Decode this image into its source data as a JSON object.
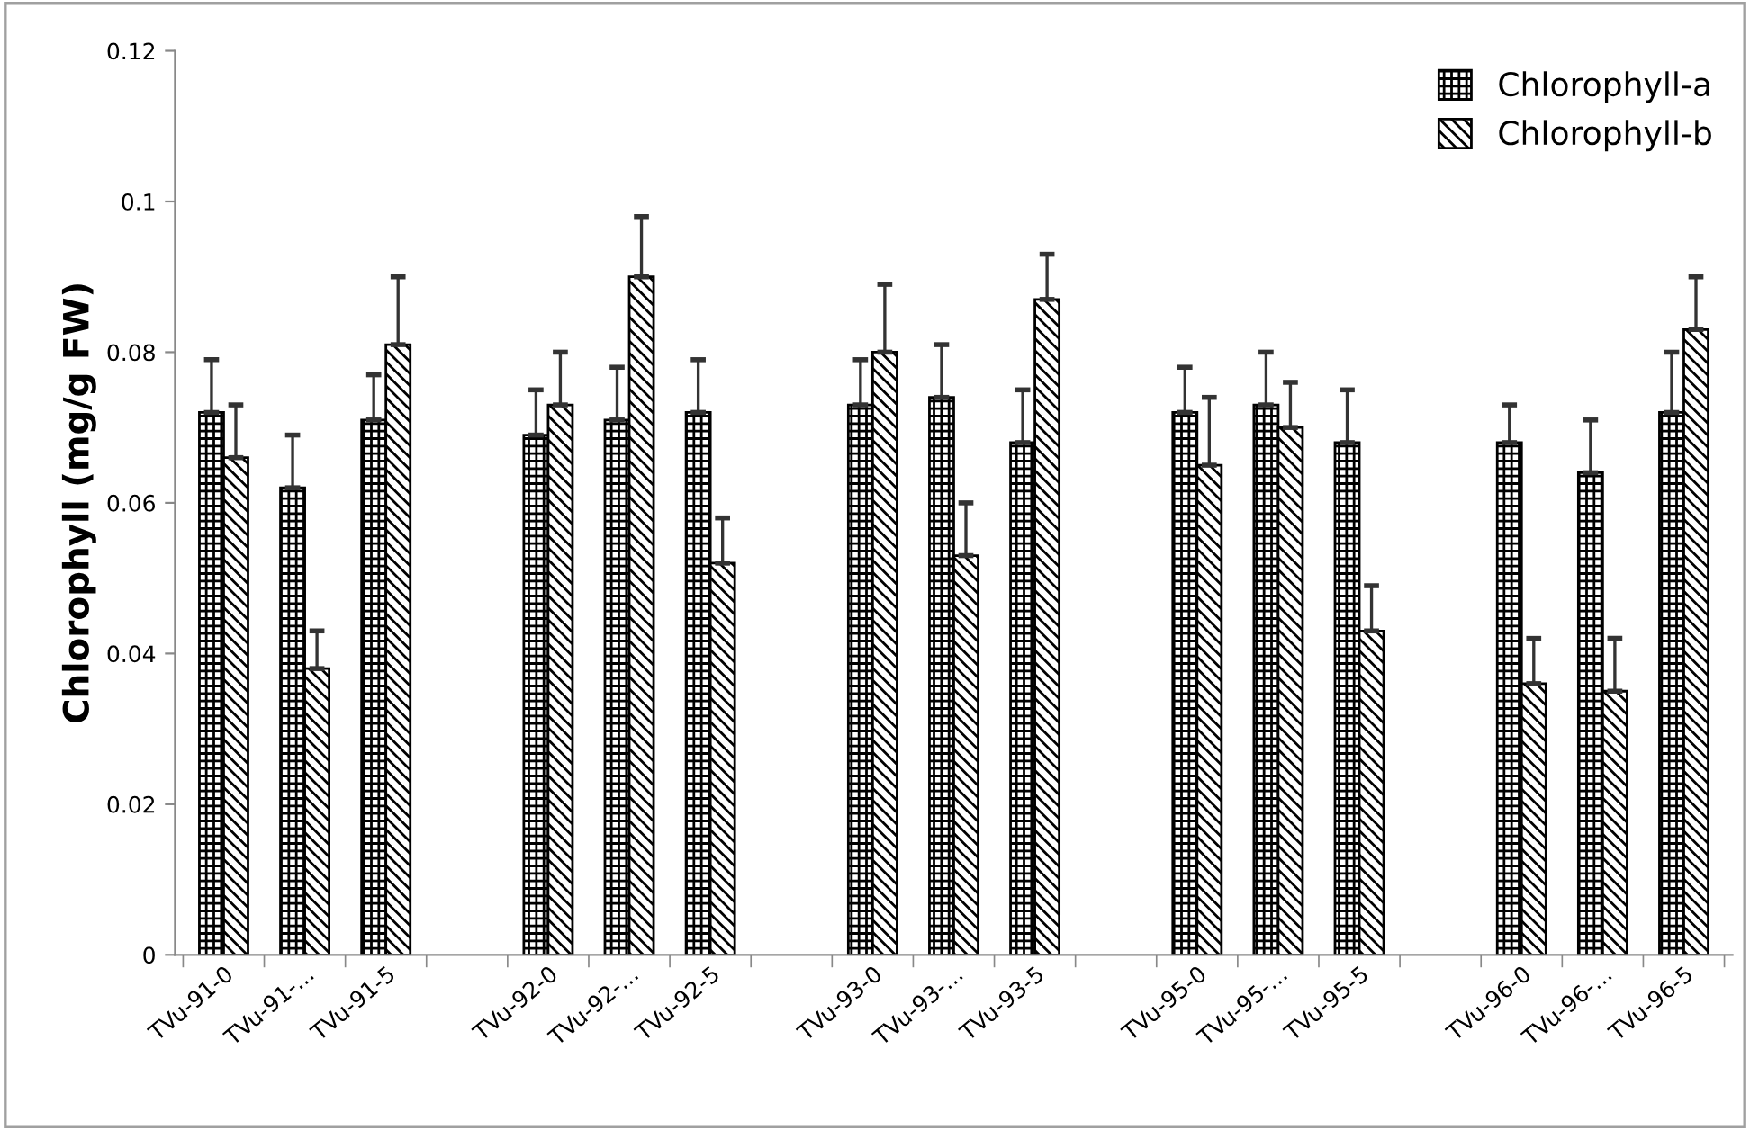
{
  "chart_data": {
    "type": "bar",
    "ylabel": "Chlorophyll (mg/g FW)",
    "categories": [
      "TVu-91-0",
      "TVu-91-...",
      "TVu-91-5",
      null,
      "TVu-92-0",
      "TVu-92-...",
      "TVu-92-5",
      null,
      "TVu-93-0",
      "TVu-93-...",
      "TVu-93-5",
      null,
      "TVu-95-0",
      "TVu-95-...",
      "TVu-95-5",
      null,
      "TVu-96-0",
      "TVu-96-...",
      "TVu-96-5"
    ],
    "series": [
      {
        "name": "Chlorophyll-a",
        "color": "#000000",
        "values": [
          0.072,
          0.062,
          0.071,
          null,
          0.069,
          0.071,
          0.072,
          null,
          0.073,
          0.074,
          0.068,
          null,
          0.072,
          0.073,
          0.068,
          null,
          0.068,
          0.064,
          0.072
        ],
        "errors": [
          [
            0.072,
            0.079
          ],
          [
            0.062,
            0.069
          ],
          [
            0.071,
            0.077
          ],
          null,
          [
            0.069,
            0.075
          ],
          [
            0.071,
            0.078
          ],
          [
            0.072,
            0.079
          ],
          null,
          [
            0.073,
            0.079
          ],
          [
            0.074,
            0.081
          ],
          [
            0.068,
            0.075
          ],
          null,
          [
            0.072,
            0.078
          ],
          [
            0.073,
            0.08
          ],
          [
            0.068,
            0.075
          ],
          null,
          [
            0.068,
            0.073
          ],
          [
            0.064,
            0.071
          ],
          [
            0.072,
            0.08
          ]
        ]
      },
      {
        "name": "Chlorophyll-b",
        "color": "#000000",
        "values": [
          0.066,
          0.038,
          0.081,
          null,
          0.073,
          0.09,
          0.052,
          null,
          0.08,
          0.053,
          0.087,
          null,
          0.065,
          0.07,
          0.043,
          null,
          0.036,
          0.035,
          0.083
        ],
        "errors": [
          [
            0.066,
            0.073
          ],
          [
            0.038,
            0.043
          ],
          [
            0.081,
            0.09
          ],
          null,
          [
            0.073,
            0.08
          ],
          [
            0.09,
            0.098
          ],
          [
            0.052,
            0.058
          ],
          null,
          [
            0.08,
            0.089
          ],
          [
            0.053,
            0.06
          ],
          [
            0.087,
            0.093
          ],
          null,
          [
            0.065,
            0.074
          ],
          [
            0.07,
            0.076
          ],
          [
            0.043,
            0.049
          ],
          null,
          [
            0.036,
            0.042
          ],
          [
            0.035,
            0.042
          ],
          [
            0.083,
            0.09
          ]
        ]
      }
    ],
    "ylim": [
      0,
      0.12
    ],
    "yticks": [
      0,
      0.02,
      0.04,
      0.06,
      0.08,
      0.1,
      0.12
    ],
    "grid": false,
    "legend": "top right"
  }
}
